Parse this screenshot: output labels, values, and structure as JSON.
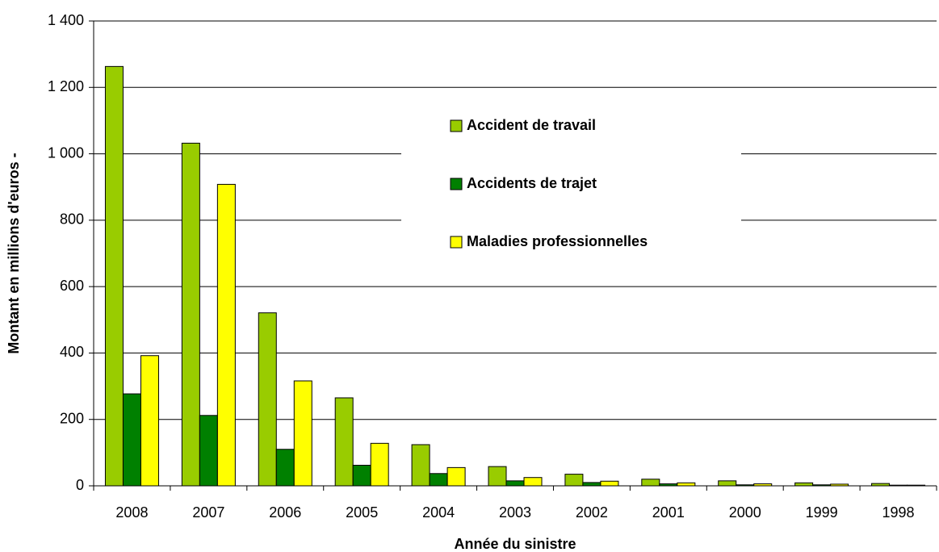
{
  "chart_data": {
    "type": "bar",
    "x_label": "Année du sinistre",
    "y_label": "Montant en millions d'euros -",
    "categories": [
      "2008",
      "2007",
      "2006",
      "2005",
      "2004",
      "2003",
      "2002",
      "2001",
      "2000",
      "1999",
      "1998"
    ],
    "series": [
      {
        "name": "Accident de travail",
        "color": "#99cc00",
        "values": [
          1263,
          1032,
          521,
          265,
          124,
          58,
          35,
          20,
          15,
          9,
          7
        ]
      },
      {
        "name": "Accidents de trajet",
        "color": "#008000",
        "values": [
          277,
          212,
          110,
          62,
          37,
          15,
          10,
          6,
          3,
          3,
          2
        ]
      },
      {
        "name": "Maladies professionnelles",
        "color": "#ffff00",
        "values": [
          392,
          908,
          316,
          128,
          55,
          25,
          14,
          9,
          6,
          5,
          2
        ]
      }
    ],
    "ylim": [
      0,
      1400
    ],
    "yticks": [
      0,
      200,
      400,
      600,
      800,
      {
        "value": 1000,
        "label": "1 000"
      },
      {
        "value": 1200,
        "label": "1 200"
      },
      {
        "value": 1400,
        "label": "1 400"
      }
    ],
    "grid": true
  }
}
